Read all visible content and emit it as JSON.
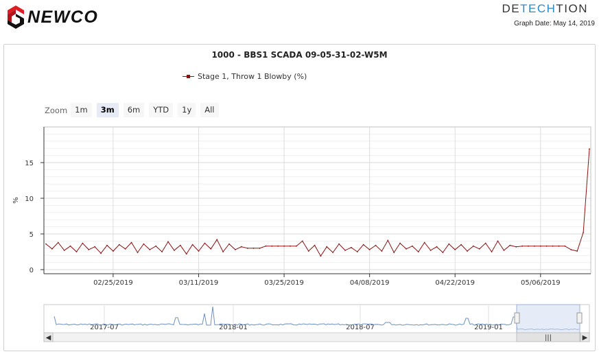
{
  "header": {
    "logo_text": "NEWCO",
    "brand_parts": [
      "DE",
      "TECH",
      "TION"
    ],
    "graph_date_label": "Graph Date: May 14, 2019"
  },
  "zoom": {
    "label": "Zoom",
    "buttons": [
      "1m",
      "3m",
      "6m",
      "YTD",
      "1y",
      "All"
    ],
    "selected": "3m"
  },
  "navigator": {
    "labels": [
      "2017-07",
      "2018-01",
      "2018-07",
      "2019-01"
    ],
    "scroll_left_arrow": "◀",
    "scroll_right_arrow": "▶",
    "scroll_grip": "|||"
  },
  "colors": {
    "series": "#8b1010",
    "navigator_line": "#6b8fbf",
    "navigator_mask": "#cfdcf2",
    "brand_accent": "#2a89c8"
  },
  "chart_data": {
    "type": "line",
    "title": "1000 - BBS1 SCADA 09-05-31-02-W5M",
    "ylabel": "%",
    "xlabel": "",
    "ylim": [
      0,
      20
    ],
    "yticks": [
      0,
      5,
      10,
      15
    ],
    "x_ticks": [
      "02/25/2019",
      "03/11/2019",
      "03/25/2019",
      "04/08/2019",
      "04/22/2019",
      "05/06/2019"
    ],
    "x_range": [
      "2019-02-14",
      "2019-05-14"
    ],
    "grid": true,
    "legend_position": "top-left",
    "series": [
      {
        "name": "Stage 1, Throw 1 Blowby (%)",
        "sampling": "daily",
        "points": [
          [
            "2019-02-14",
            3.6
          ],
          [
            "2019-02-15",
            2.9
          ],
          [
            "2019-02-16",
            3.8
          ],
          [
            "2019-02-17",
            2.7
          ],
          [
            "2019-02-18",
            3.3
          ],
          [
            "2019-02-19",
            2.5
          ],
          [
            "2019-02-20",
            3.7
          ],
          [
            "2019-02-21",
            2.8
          ],
          [
            "2019-02-22",
            3.2
          ],
          [
            "2019-02-23",
            2.3
          ],
          [
            "2019-02-24",
            3.4
          ],
          [
            "2019-02-25",
            2.6
          ],
          [
            "2019-02-26",
            3.5
          ],
          [
            "2019-02-27",
            2.9
          ],
          [
            "2019-02-28",
            3.8
          ],
          [
            "2019-03-01",
            2.4
          ],
          [
            "2019-03-02",
            3.6
          ],
          [
            "2019-03-03",
            2.8
          ],
          [
            "2019-03-04",
            3.3
          ],
          [
            "2019-03-05",
            2.5
          ],
          [
            "2019-03-06",
            3.9
          ],
          [
            "2019-03-07",
            2.7
          ],
          [
            "2019-03-08",
            3.4
          ],
          [
            "2019-03-09",
            2.2
          ],
          [
            "2019-03-10",
            3.5
          ],
          [
            "2019-03-11",
            2.6
          ],
          [
            "2019-03-12",
            3.7
          ],
          [
            "2019-03-13",
            2.9
          ],
          [
            "2019-03-14",
            4.2
          ],
          [
            "2019-03-15",
            2.5
          ],
          [
            "2019-03-16",
            3.6
          ],
          [
            "2019-03-17",
            2.8
          ],
          [
            "2019-03-18",
            3.2
          ],
          [
            "2019-03-19",
            3.0
          ],
          [
            "2019-03-20",
            3.0
          ],
          [
            "2019-03-21",
            3.0
          ],
          [
            "2019-03-22",
            3.3
          ],
          [
            "2019-03-23",
            3.3
          ],
          [
            "2019-03-24",
            3.3
          ],
          [
            "2019-03-25",
            3.3
          ],
          [
            "2019-03-26",
            3.3
          ],
          [
            "2019-03-27",
            3.3
          ],
          [
            "2019-03-28",
            4.0
          ],
          [
            "2019-03-29",
            2.6
          ],
          [
            "2019-03-30",
            3.4
          ],
          [
            "2019-03-31",
            1.9
          ],
          [
            "2019-04-01",
            3.2
          ],
          [
            "2019-04-02",
            2.4
          ],
          [
            "2019-04-03",
            3.6
          ],
          [
            "2019-04-04",
            2.7
          ],
          [
            "2019-04-05",
            3.1
          ],
          [
            "2019-04-06",
            2.5
          ],
          [
            "2019-04-07",
            3.5
          ],
          [
            "2019-04-08",
            2.8
          ],
          [
            "2019-04-09",
            3.4
          ],
          [
            "2019-04-10",
            2.6
          ],
          [
            "2019-04-11",
            4.1
          ],
          [
            "2019-04-12",
            2.4
          ],
          [
            "2019-04-13",
            3.7
          ],
          [
            "2019-04-14",
            2.9
          ],
          [
            "2019-04-15",
            3.3
          ],
          [
            "2019-04-16",
            2.5
          ],
          [
            "2019-04-17",
            3.8
          ],
          [
            "2019-04-18",
            2.7
          ],
          [
            "2019-04-19",
            3.2
          ],
          [
            "2019-04-20",
            2.4
          ],
          [
            "2019-04-21",
            3.6
          ],
          [
            "2019-04-22",
            2.8
          ],
          [
            "2019-04-23",
            3.5
          ],
          [
            "2019-04-24",
            2.6
          ],
          [
            "2019-04-25",
            3.3
          ],
          [
            "2019-04-26",
            2.9
          ],
          [
            "2019-04-27",
            3.7
          ],
          [
            "2019-04-28",
            2.5
          ],
          [
            "2019-04-29",
            4.0
          ],
          [
            "2019-04-30",
            2.7
          ],
          [
            "2019-05-01",
            3.4
          ],
          [
            "2019-05-02",
            3.2
          ],
          [
            "2019-05-03",
            3.3
          ],
          [
            "2019-05-04",
            3.3
          ],
          [
            "2019-05-05",
            3.3
          ],
          [
            "2019-05-06",
            3.3
          ],
          [
            "2019-05-07",
            3.3
          ],
          [
            "2019-05-08",
            3.3
          ],
          [
            "2019-05-09",
            3.3
          ],
          [
            "2019-05-10",
            3.3
          ],
          [
            "2019-05-11",
            2.8
          ],
          [
            "2019-05-12",
            2.6
          ],
          [
            "2019-05-13",
            5.2
          ],
          [
            "2019-05-14",
            16.9
          ]
        ]
      }
    ]
  }
}
